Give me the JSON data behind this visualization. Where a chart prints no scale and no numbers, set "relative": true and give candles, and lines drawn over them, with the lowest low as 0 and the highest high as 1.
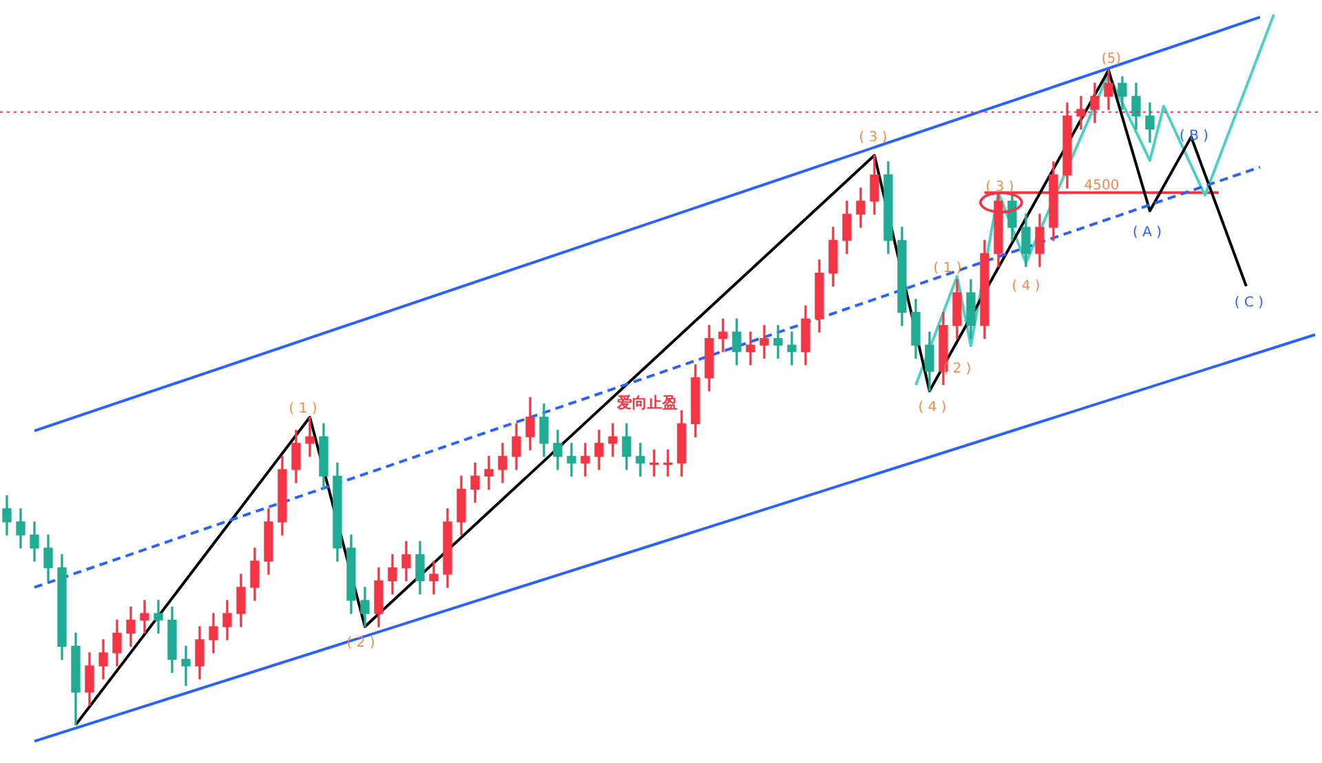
{
  "chart_data": {
    "type": "candlestick",
    "relative": true,
    "categories": [
      null,
      null,
      null,
      null,
      null,
      null,
      null,
      null,
      null,
      null,
      null,
      null,
      null,
      null,
      null,
      null,
      null,
      null,
      null,
      null,
      null,
      null,
      null,
      null,
      null,
      null,
      null,
      null,
      null,
      null,
      null,
      null,
      null,
      null,
      null,
      null,
      null,
      null,
      null,
      null,
      null,
      null,
      null,
      null,
      null,
      null,
      null,
      null,
      null,
      null,
      null,
      null,
      null,
      null,
      null,
      null,
      null,
      null,
      null,
      null,
      null,
      null,
      null,
      null,
      null,
      null,
      null,
      null,
      null,
      null,
      null,
      null,
      null,
      null,
      null,
      null,
      null,
      null,
      null,
      null,
      null,
      null,
      null,
      null,
      null,
      null,
      null,
      null,
      null,
      null,
      null,
      null,
      null,
      null,
      null,
      null
    ],
    "ohlc": [
      [
        0.33,
        0.35,
        0.29,
        0.31
      ],
      [
        0.31,
        0.33,
        0.27,
        0.29
      ],
      [
        0.29,
        0.31,
        0.25,
        0.27
      ],
      [
        0.27,
        0.29,
        0.22,
        0.24
      ],
      [
        0.24,
        0.26,
        0.1,
        0.12
      ],
      [
        0.12,
        0.14,
        0,
        0.05
      ],
      [
        0.05,
        0.11,
        0.03,
        0.09
      ],
      [
        0.09,
        0.13,
        0.07,
        0.11
      ],
      [
        0.11,
        0.16,
        0.09,
        0.14
      ],
      [
        0.14,
        0.18,
        0.12,
        0.16
      ],
      [
        0.16,
        0.19,
        0.14,
        0.17
      ],
      [
        0.17,
        0.19,
        0.14,
        0.16
      ],
      [
        0.16,
        0.18,
        0.08,
        0.1
      ],
      [
        0.1,
        0.12,
        0.06,
        0.09
      ],
      [
        0.09,
        0.15,
        0.07,
        0.13
      ],
      [
        0.13,
        0.17,
        0.11,
        0.15
      ],
      [
        0.15,
        0.19,
        0.13,
        0.17
      ],
      [
        0.17,
        0.23,
        0.15,
        0.21
      ],
      [
        0.21,
        0.27,
        0.19,
        0.25
      ],
      [
        0.25,
        0.33,
        0.23,
        0.31
      ],
      [
        0.31,
        0.41,
        0.29,
        0.39
      ],
      [
        0.39,
        0.45,
        0.37,
        0.43
      ],
      [
        0.43,
        0.47,
        0.41,
        0.44
      ],
      [
        0.44,
        0.46,
        0.36,
        0.38
      ],
      [
        0.38,
        0.4,
        0.25,
        0.27
      ],
      [
        0.27,
        0.29,
        0.17,
        0.19
      ],
      [
        0.19,
        0.21,
        0.15,
        0.17
      ],
      [
        0.17,
        0.24,
        0.15,
        0.22
      ],
      [
        0.22,
        0.26,
        0.2,
        0.24
      ],
      [
        0.24,
        0.28,
        0.22,
        0.26
      ],
      [
        0.26,
        0.28,
        0.2,
        0.22
      ],
      [
        0.22,
        0.25,
        0.2,
        0.23
      ],
      [
        0.23,
        0.33,
        0.21,
        0.31
      ],
      [
        0.31,
        0.38,
        0.29,
        0.36
      ],
      [
        0.36,
        0.4,
        0.34,
        0.38
      ],
      [
        0.38,
        0.41,
        0.36,
        0.39
      ],
      [
        0.39,
        0.43,
        0.37,
        0.41
      ],
      [
        0.41,
        0.46,
        0.39,
        0.44
      ],
      [
        0.44,
        0.5,
        0.42,
        0.47
      ],
      [
        0.47,
        0.49,
        0.41,
        0.43
      ],
      [
        0.43,
        0.45,
        0.39,
        0.41
      ],
      [
        0.41,
        0.43,
        0.38,
        0.4
      ],
      [
        0.4,
        0.43,
        0.38,
        0.41
      ],
      [
        0.41,
        0.45,
        0.39,
        0.43
      ],
      [
        0.43,
        0.46,
        0.41,
        0.44
      ],
      [
        0.44,
        0.46,
        0.39,
        0.41
      ],
      [
        0.41,
        0.43,
        0.38,
        0.4
      ],
      [
        0.4,
        0.42,
        0.38,
        0.4
      ],
      [
        0.4,
        0.42,
        0.38,
        0.4
      ],
      [
        0.4,
        0.48,
        0.38,
        0.46
      ],
      [
        0.46,
        0.55,
        0.44,
        0.53
      ],
      [
        0.53,
        0.61,
        0.51,
        0.59
      ],
      [
        0.59,
        0.62,
        0.57,
        0.6
      ],
      [
        0.6,
        0.62,
        0.55,
        0.57
      ],
      [
        0.57,
        0.6,
        0.55,
        0.58
      ],
      [
        0.58,
        0.61,
        0.56,
        0.59
      ],
      [
        0.59,
        0.61,
        0.56,
        0.58
      ],
      [
        0.58,
        0.6,
        0.55,
        0.57
      ],
      [
        0.57,
        0.64,
        0.55,
        0.62
      ],
      [
        0.62,
        0.71,
        0.6,
        0.69
      ],
      [
        0.69,
        0.76,
        0.67,
        0.74
      ],
      [
        0.74,
        0.8,
        0.72,
        0.78
      ],
      [
        0.78,
        0.82,
        0.76,
        0.8
      ],
      [
        0.8,
        0.87,
        0.78,
        0.84
      ],
      [
        0.84,
        0.86,
        0.72,
        0.74
      ],
      [
        0.74,
        0.76,
        0.61,
        0.63
      ],
      [
        0.63,
        0.65,
        0.56,
        0.58
      ],
      [
        0.58,
        0.6,
        0.51,
        0.54
      ],
      [
        0.54,
        0.63,
        0.52,
        0.61
      ],
      [
        0.61,
        0.68,
        0.59,
        0.66
      ],
      [
        0.66,
        0.68,
        0.59,
        0.61
      ],
      [
        0.61,
        0.74,
        0.59,
        0.72
      ],
      [
        0.72,
        0.81,
        0.7,
        0.8
      ],
      [
        0.8,
        0.81,
        0.74,
        0.76
      ],
      [
        0.76,
        0.78,
        0.7,
        0.72
      ],
      [
        0.72,
        0.78,
        0.7,
        0.76
      ],
      [
        0.76,
        0.86,
        0.74,
        0.84
      ],
      [
        0.84,
        0.95,
        0.82,
        0.93
      ],
      [
        0.93,
        0.96,
        0.91,
        0.94
      ],
      [
        0.94,
        0.98,
        0.92,
        0.96
      ],
      [
        0.96,
        1,
        0.94,
        0.98
      ],
      [
        0.98,
        0.99,
        0.94,
        0.96
      ],
      [
        0.96,
        0.98,
        0.91,
        0.93
      ],
      [
        0.93,
        0.95,
        0.89,
        0.91
      ],
      null,
      null,
      null,
      null,
      null,
      null,
      null,
      null,
      null,
      null,
      null,
      null
    ],
    "series": [
      {
        "type": "line",
        "color": "#2962ff",
        "line_style": "solid",
        "values": [
          null,
          null,
          0.449,
          null,
          null,
          null,
          null,
          null,
          null,
          null,
          null,
          null,
          null,
          null,
          null,
          null,
          null,
          null,
          null,
          null,
          null,
          null,
          null,
          null,
          null,
          null,
          null,
          null,
          null,
          null,
          null,
          null,
          null,
          null,
          null,
          null,
          null,
          null,
          null,
          null,
          null,
          null,
          null,
          null,
          null,
          null,
          null,
          null,
          null,
          null,
          null,
          null,
          null,
          null,
          null,
          null,
          null,
          null,
          null,
          null,
          null,
          null,
          null,
          null,
          null,
          null,
          null,
          null,
          null,
          null,
          null,
          null,
          null,
          null,
          null,
          null,
          null,
          null,
          null,
          null,
          null,
          null,
          null,
          null,
          null,
          null,
          null,
          null,
          null,
          null,
          null,
          1.081,
          null,
          null,
          null,
          null
        ]
      },
      {
        "type": "line",
        "color": "#2962ff",
        "line_style": "solid",
        "values": [
          null,
          null,
          -0.025,
          null,
          null,
          null,
          null,
          null,
          null,
          null,
          null,
          null,
          null,
          null,
          null,
          null,
          null,
          null,
          null,
          null,
          null,
          null,
          null,
          null,
          null,
          null,
          null,
          null,
          null,
          null,
          null,
          null,
          null,
          null,
          null,
          null,
          null,
          null,
          null,
          null,
          null,
          null,
          null,
          null,
          null,
          null,
          null,
          null,
          null,
          null,
          null,
          null,
          null,
          null,
          null,
          null,
          null,
          null,
          null,
          null,
          null,
          null,
          null,
          null,
          null,
          null,
          null,
          null,
          null,
          null,
          null,
          null,
          null,
          null,
          null,
          null,
          null,
          null,
          null,
          null,
          null,
          null,
          null,
          null,
          null,
          null,
          null,
          null,
          null,
          null,
          null,
          null,
          null,
          null,
          null,
          0.596
        ]
      },
      {
        "type": "line",
        "color": "#2962ff",
        "line_style": "dashed",
        "values": [
          null,
          null,
          0.21,
          null,
          null,
          null,
          null,
          null,
          null,
          null,
          null,
          null,
          null,
          null,
          null,
          null,
          null,
          null,
          null,
          null,
          null,
          null,
          null,
          null,
          null,
          null,
          null,
          null,
          null,
          null,
          null,
          null,
          null,
          null,
          null,
          null,
          null,
          null,
          null,
          null,
          null,
          null,
          null,
          null,
          null,
          null,
          null,
          null,
          null,
          null,
          null,
          null,
          null,
          null,
          null,
          null,
          null,
          null,
          null,
          null,
          null,
          null,
          null,
          null,
          null,
          null,
          null,
          null,
          null,
          null,
          null,
          null,
          null,
          null,
          null,
          null,
          null,
          null,
          null,
          null,
          null,
          null,
          null,
          null,
          null,
          null,
          null,
          null,
          null,
          null,
          null,
          0.852,
          null,
          null,
          null,
          null
        ]
      },
      {
        "type": "line",
        "color": "#000000",
        "line_style": "solid",
        "values": [
          null,
          null,
          null,
          null,
          null,
          0,
          null,
          null,
          null,
          null,
          null,
          null,
          null,
          null,
          null,
          null,
          null,
          null,
          null,
          null,
          null,
          null,
          0.47,
          null,
          null,
          null,
          0.15,
          null,
          null,
          null,
          null,
          null,
          null,
          null,
          null,
          null,
          null,
          null,
          null,
          null,
          null,
          null,
          null,
          null,
          null,
          null,
          null,
          null,
          null,
          null,
          null,
          null,
          null,
          null,
          null,
          null,
          null,
          null,
          null,
          null,
          null,
          null,
          null,
          0.87,
          null,
          null,
          null,
          0.51,
          null,
          null,
          null,
          null,
          null,
          null,
          null,
          null,
          null,
          null,
          null,
          null,
          1,
          null,
          null,
          0.785,
          null,
          null,
          0.898,
          null,
          null,
          null,
          0.67,
          null,
          null,
          null,
          null,
          null
        ]
      },
      {
        "type": "line",
        "color": "#4dd0c4",
        "line_style": "solid",
        "values": [
          null,
          null,
          null,
          null,
          null,
          null,
          null,
          null,
          null,
          null,
          null,
          null,
          null,
          null,
          null,
          null,
          null,
          null,
          null,
          null,
          null,
          null,
          null,
          null,
          null,
          null,
          null,
          null,
          null,
          null,
          null,
          null,
          null,
          null,
          null,
          null,
          null,
          null,
          null,
          null,
          null,
          null,
          null,
          null,
          null,
          null,
          null,
          null,
          null,
          null,
          null,
          null,
          null,
          null,
          null,
          null,
          null,
          null,
          null,
          null,
          null,
          null,
          null,
          null,
          null,
          null,
          0.519,
          null,
          null,
          0.685,
          0.579,
          null,
          0.813,
          null,
          0.706,
          null,
          null,
          null,
          null,
          null,
          0.994,
          null,
          null,
          0.862,
          0.945,
          null,
          null,
          0.809,
          null,
          null,
          null,
          null,
          1.085,
          null,
          null,
          null
        ]
      },
      {
        "type": "line",
        "color": "#f23645",
        "line_style": "solid",
        "values": [
          null,
          null,
          null,
          null,
          null,
          null,
          null,
          null,
          null,
          null,
          null,
          null,
          null,
          null,
          null,
          null,
          null,
          null,
          null,
          null,
          null,
          null,
          null,
          null,
          null,
          null,
          null,
          null,
          null,
          null,
          null,
          null,
          null,
          null,
          null,
          null,
          null,
          null,
          null,
          null,
          null,
          null,
          null,
          null,
          null,
          null,
          null,
          null,
          null,
          null,
          null,
          null,
          null,
          null,
          null,
          null,
          null,
          null,
          null,
          null,
          null,
          null,
          null,
          null,
          null,
          null,
          null,
          null,
          null,
          null,
          null,
          0.813,
          null,
          null,
          null,
          null,
          null,
          null,
          null,
          null,
          null,
          null,
          null,
          null,
          null,
          null,
          null,
          null,
          0.813,
          null,
          null,
          null,
          null,
          null,
          null,
          null
        ]
      }
    ],
    "ref_lines": [
      {
        "axis": "y",
        "value": 0.936,
        "color": "#f23645",
        "line_style": "dotted"
      }
    ],
    "annotations": [
      "爱向止盈",
      "( 1 )",
      "( 2 )",
      "( 3 )",
      "( 4 )",
      "(5)",
      "( A )",
      "( B )",
      "( C )",
      "( 1 )",
      "( 2 )",
      "( 3 )",
      "( 4 )",
      "4500"
    ]
  }
}
